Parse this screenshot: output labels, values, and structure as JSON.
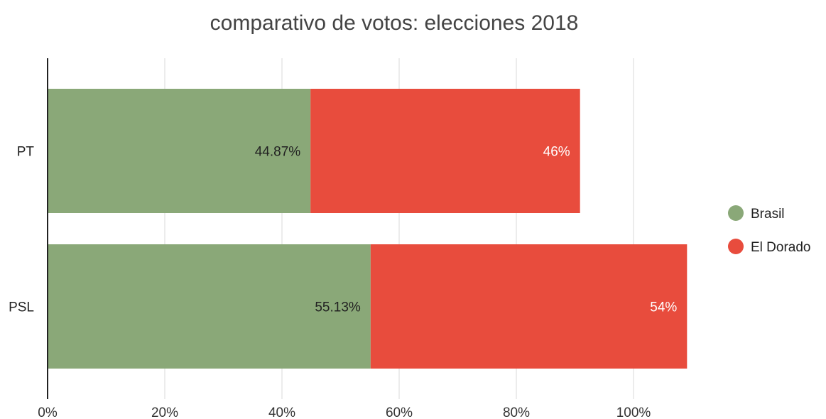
{
  "chart_data": {
    "type": "bar",
    "orientation": "horizontal",
    "stacked": true,
    "title": "comparativo de votos: elecciones 2018",
    "xlabel": "",
    "ylabel": "",
    "categories": [
      "PT",
      "PSL"
    ],
    "series": [
      {
        "name": "Brasil",
        "color": "#8aa878",
        "values": [
          44.87,
          55.13
        ],
        "labels": [
          "44.87%",
          "55.13%"
        ],
        "label_color": "#222222"
      },
      {
        "name": "El Dorado",
        "color": "#e84c3d",
        "values": [
          46,
          54
        ],
        "labels": [
          "46%",
          "54%"
        ],
        "label_color": "#ffffff"
      }
    ],
    "xlim": [
      0,
      120
    ],
    "xticks": [
      0,
      20,
      40,
      60,
      80,
      100
    ],
    "xtick_labels": [
      "0%",
      "20%",
      "40%",
      "60%",
      "80%",
      "100%"
    ],
    "grid": true,
    "legend_position": "right"
  }
}
